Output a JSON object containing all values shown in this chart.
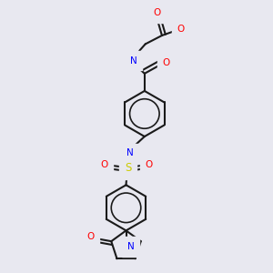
{
  "bg_color": "#e8e8f0",
  "atom_colors": {
    "O": "#ff0000",
    "N": "#0000ff",
    "S": "#cccc00",
    "C": "#000000",
    "H": "#708090"
  },
  "bond_color": "#1a1a1a",
  "bond_width": 1.5
}
